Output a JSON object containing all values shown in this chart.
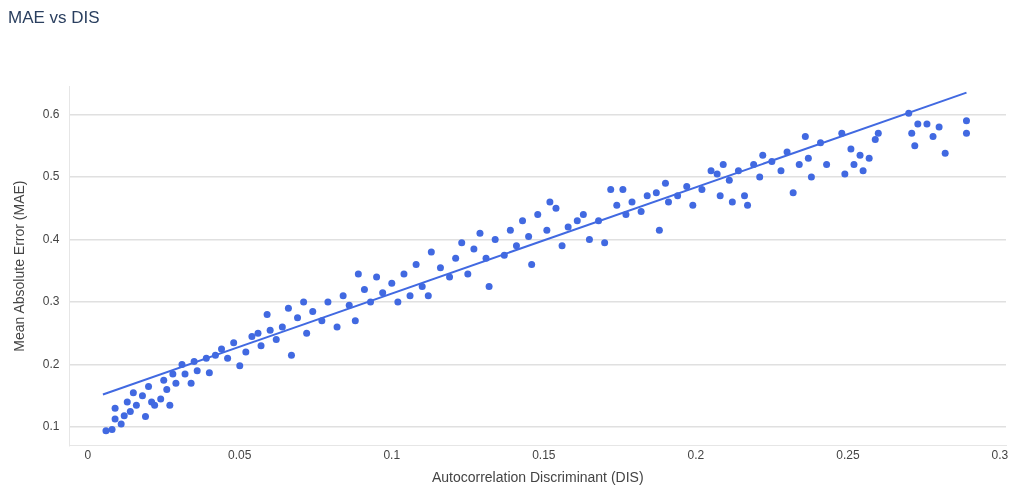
{
  "chart_data": {
    "type": "scatter",
    "title": "MAE vs DIS",
    "xlabel": "Autocorrelation Discriminant (DIS)",
    "ylabel": "Mean Absolute Error (MAE)",
    "xlim": [
      -0.006,
      0.302
    ],
    "ylim": [
      0.07,
      0.645
    ],
    "xticks": [
      0,
      0.05,
      0.1,
      0.15,
      0.2,
      0.25,
      0.3
    ],
    "yticks": [
      0.1,
      0.2,
      0.3,
      0.4,
      0.5,
      0.6
    ],
    "grid": "y",
    "legend": false,
    "series": [
      {
        "type": "scatter",
        "marker": "circle",
        "color": "#4169e1",
        "x": [
          0.006,
          0.008,
          0.009,
          0.009,
          0.011,
          0.012,
          0.013,
          0.014,
          0.015,
          0.016,
          0.018,
          0.019,
          0.02,
          0.021,
          0.022,
          0.024,
          0.025,
          0.026,
          0.027,
          0.028,
          0.029,
          0.031,
          0.032,
          0.034,
          0.035,
          0.036,
          0.039,
          0.04,
          0.042,
          0.044,
          0.046,
          0.048,
          0.05,
          0.052,
          0.054,
          0.056,
          0.057,
          0.059,
          0.06,
          0.062,
          0.064,
          0.066,
          0.067,
          0.069,
          0.071,
          0.072,
          0.074,
          0.077,
          0.079,
          0.082,
          0.084,
          0.086,
          0.088,
          0.089,
          0.091,
          0.093,
          0.095,
          0.097,
          0.1,
          0.102,
          0.104,
          0.106,
          0.108,
          0.11,
          0.112,
          0.113,
          0.116,
          0.119,
          0.121,
          0.123,
          0.125,
          0.127,
          0.129,
          0.131,
          0.132,
          0.134,
          0.137,
          0.139,
          0.141,
          0.143,
          0.145,
          0.146,
          0.148,
          0.151,
          0.152,
          0.154,
          0.156,
          0.158,
          0.161,
          0.163,
          0.165,
          0.168,
          0.17,
          0.172,
          0.174,
          0.176,
          0.177,
          0.179,
          0.182,
          0.184,
          0.187,
          0.188,
          0.19,
          0.191,
          0.194,
          0.197,
          0.199,
          0.202,
          0.205,
          0.207,
          0.208,
          0.209,
          0.211,
          0.212,
          0.214,
          0.216,
          0.217,
          0.219,
          0.221,
          0.222,
          0.225,
          0.228,
          0.23,
          0.232,
          0.234,
          0.236,
          0.237,
          0.238,
          0.241,
          0.243,
          0.248,
          0.249,
          0.251,
          0.252,
          0.254,
          0.255,
          0.257,
          0.259,
          0.26,
          0.27,
          0.271,
          0.272,
          0.273,
          0.276,
          0.278,
          0.28,
          0.282,
          0.289,
          0.289
        ],
        "values": [
          0.094,
          0.096,
          0.113,
          0.13,
          0.105,
          0.118,
          0.14,
          0.125,
          0.155,
          0.135,
          0.15,
          0.117,
          0.165,
          0.14,
          0.135,
          0.145,
          0.175,
          0.16,
          0.135,
          0.185,
          0.17,
          0.2,
          0.185,
          0.17,
          0.205,
          0.19,
          0.21,
          0.187,
          0.215,
          0.225,
          0.21,
          0.235,
          0.198,
          0.22,
          0.245,
          0.25,
          0.23,
          0.28,
          0.255,
          0.24,
          0.26,
          0.29,
          0.215,
          0.275,
          0.3,
          0.25,
          0.285,
          0.27,
          0.3,
          0.26,
          0.31,
          0.295,
          0.27,
          0.345,
          0.32,
          0.3,
          0.34,
          0.315,
          0.33,
          0.3,
          0.345,
          0.31,
          0.36,
          0.325,
          0.31,
          0.38,
          0.355,
          0.34,
          0.37,
          0.395,
          0.345,
          0.385,
          0.41,
          0.37,
          0.325,
          0.4,
          0.375,
          0.415,
          0.39,
          0.43,
          0.405,
          0.36,
          0.44,
          0.415,
          0.46,
          0.45,
          0.39,
          0.42,
          0.43,
          0.44,
          0.4,
          0.43,
          0.395,
          0.48,
          0.455,
          0.48,
          0.44,
          0.46,
          0.445,
          0.47,
          0.475,
          0.415,
          0.49,
          0.46,
          0.47,
          0.485,
          0.455,
          0.48,
          0.51,
          0.505,
          0.47,
          0.52,
          0.495,
          0.46,
          0.51,
          0.47,
          0.455,
          0.52,
          0.5,
          0.535,
          0.525,
          0.51,
          0.54,
          0.475,
          0.52,
          0.565,
          0.53,
          0.5,
          0.555,
          0.52,
          0.57,
          0.505,
          0.545,
          0.52,
          0.535,
          0.51,
          0.53,
          0.56,
          0.57,
          0.602,
          0.57,
          0.55,
          0.585,
          0.585,
          0.565,
          0.58,
          0.538,
          0.59,
          0.57
        ]
      },
      {
        "type": "line",
        "color": "#4169e1",
        "x": [
          0.005,
          0.289
        ],
        "values": [
          0.152,
          0.635
        ]
      }
    ]
  }
}
